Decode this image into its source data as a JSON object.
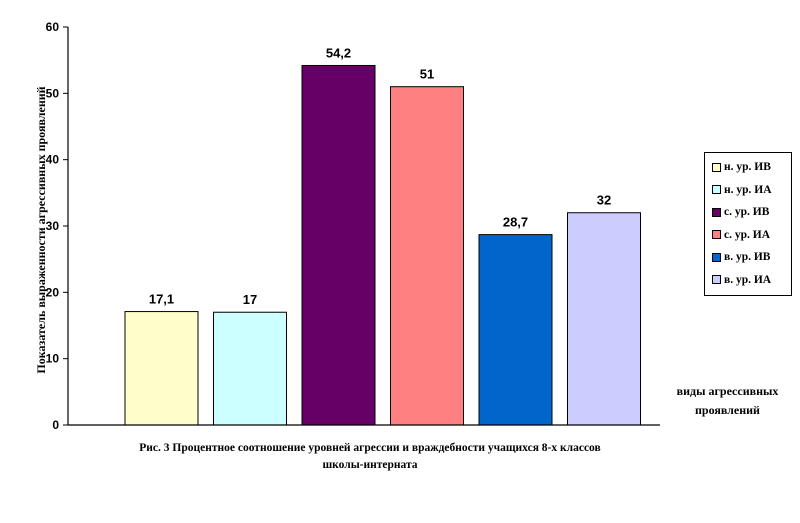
{
  "chart_data": {
    "type": "bar",
    "categories": [
      "н. ур. ИВ",
      "н. ур. ИА",
      "с. ур. ИВ",
      "с. ур. ИА",
      "в. ур. ИВ",
      "в. ур. ИА"
    ],
    "values": [
      17.1,
      17,
      54.2,
      51,
      28.7,
      32
    ],
    "data_labels": [
      "17,1",
      "17",
      "54,2",
      "51",
      "28,7",
      "32"
    ],
    "colors": [
      "#FFFFCC",
      "#CCFFFF",
      "#660066",
      "#FF8080",
      "#0066CC",
      "#CCCCFF"
    ],
    "ylabel": "Показатель выраженности агрессивных проявлений",
    "xlabel_line1": "виды агрессивных",
    "xlabel_line2": "проявлений",
    "ylim": [
      0,
      60
    ],
    "yticks": [
      0,
      10,
      20,
      30,
      40,
      50,
      60
    ],
    "grid": false,
    "legend_position": "right"
  },
  "caption": {
    "line1": "Рис. 3 Процентное соотношение уровней агрессии и враждебности учащихся 8-х классов",
    "line2": "школы-интерната"
  }
}
